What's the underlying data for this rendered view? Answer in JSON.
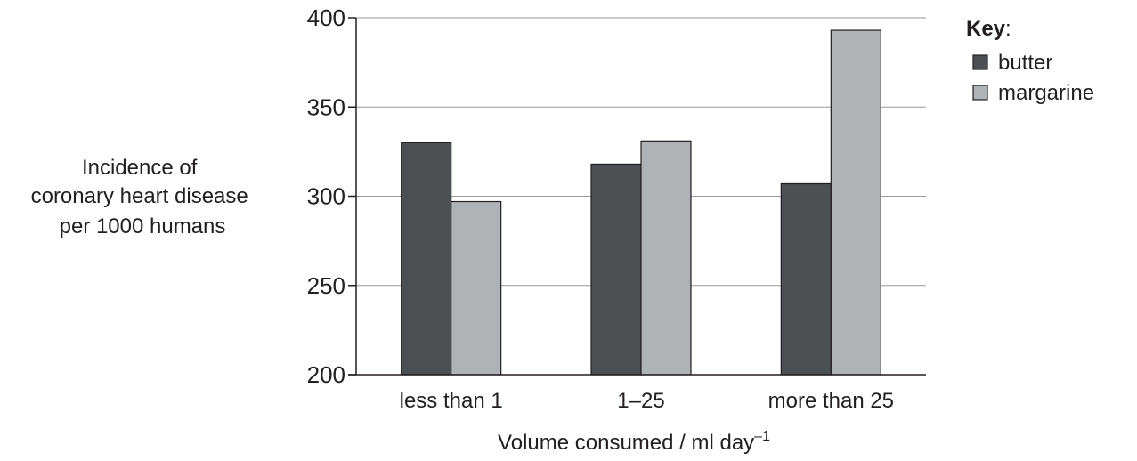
{
  "chart_data": {
    "type": "bar",
    "categories": [
      "less than 1",
      "1–25",
      "more than 25"
    ],
    "series": [
      {
        "name": "butter",
        "values": [
          330,
          318,
          307
        ],
        "color": "#4d5053"
      },
      {
        "name": "margarine",
        "values": [
          297,
          331,
          393
        ],
        "color": "#afb3b5"
      }
    ],
    "ylabel_lines": [
      "Incidence of",
      "coronary heart disease",
      "per 1000 humans"
    ],
    "xlabel": "Volume consumed / ml day",
    "xlabel_sup": "–1",
    "ylim": [
      200,
      400
    ],
    "yticks": [
      200,
      250,
      300,
      350,
      400
    ],
    "grid": true,
    "legend": {
      "title": "Key",
      "title_suffix": ":",
      "placement": "right"
    }
  }
}
